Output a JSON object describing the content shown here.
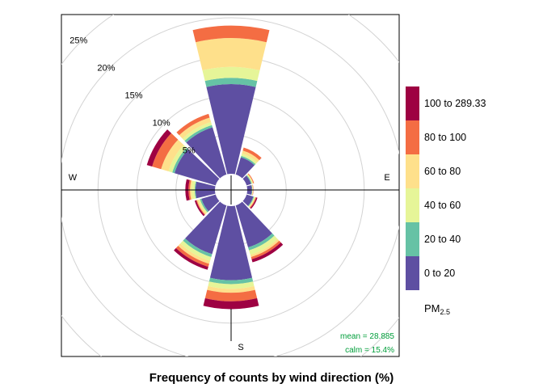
{
  "chart_data": {
    "type": "windrose",
    "title": "Frequency of counts by wind direction (%)",
    "radial_ticks": [
      "5%",
      "10%",
      "15%",
      "20%",
      "25%"
    ],
    "radial_values": [
      5,
      10,
      15,
      20,
      25
    ],
    "compass_labels": {
      "W": "W",
      "E": "E",
      "S": "S"
    },
    "directions": [
      0,
      30,
      60,
      90,
      120,
      150,
      180,
      210,
      240,
      270,
      300,
      330
    ],
    "legend_title": "PM",
    "legend_title_sub": "2.5",
    "bins": [
      "0 to 20",
      "20 to 40",
      "40 to 60",
      "60 to 80",
      "80 to 100",
      "100 to 289.33"
    ],
    "colors": [
      "#5E4FA2",
      "#66C2A5",
      "#E6F598",
      "#FEE08B",
      "#F46D43",
      "#9E0142"
    ],
    "cumulative_percent": [
      [
        11.5,
        12.3,
        13.7,
        17.4,
        19.0,
        19.0
      ],
      [
        2.3,
        2.5,
        2.8,
        3.2,
        3.6,
        3.6
      ],
      [
        0.6,
        0.7,
        0.8,
        0.9,
        1.0,
        1.0
      ],
      [
        0.6,
        0.65,
        0.7,
        0.75,
        0.8,
        0.8
      ],
      [
        0.9,
        1.0,
        1.1,
        1.2,
        1.3,
        1.45
      ],
      [
        5.6,
        6.0,
        6.6,
        6.9,
        7.2,
        7.6
      ],
      [
        9.5,
        10.0,
        10.6,
        11.1,
        12.2,
        13.2
      ],
      [
        6.5,
        6.9,
        7.4,
        7.8,
        8.2,
        8.6
      ],
      [
        1.9,
        2.1,
        2.3,
        2.5,
        2.6,
        2.8
      ],
      [
        2.5,
        2.6,
        3.0,
        3.2,
        3.4,
        3.8
      ],
      [
        5.5,
        5.8,
        6.3,
        7.3,
        8.5,
        9.2
      ],
      [
        6.3,
        6.6,
        7.0,
        7.6,
        8.1,
        8.1
      ]
    ],
    "annotations": {
      "mean": "mean = 28.885",
      "calm": "calm = 15.4%"
    },
    "annotation_color": "#009E3A"
  }
}
